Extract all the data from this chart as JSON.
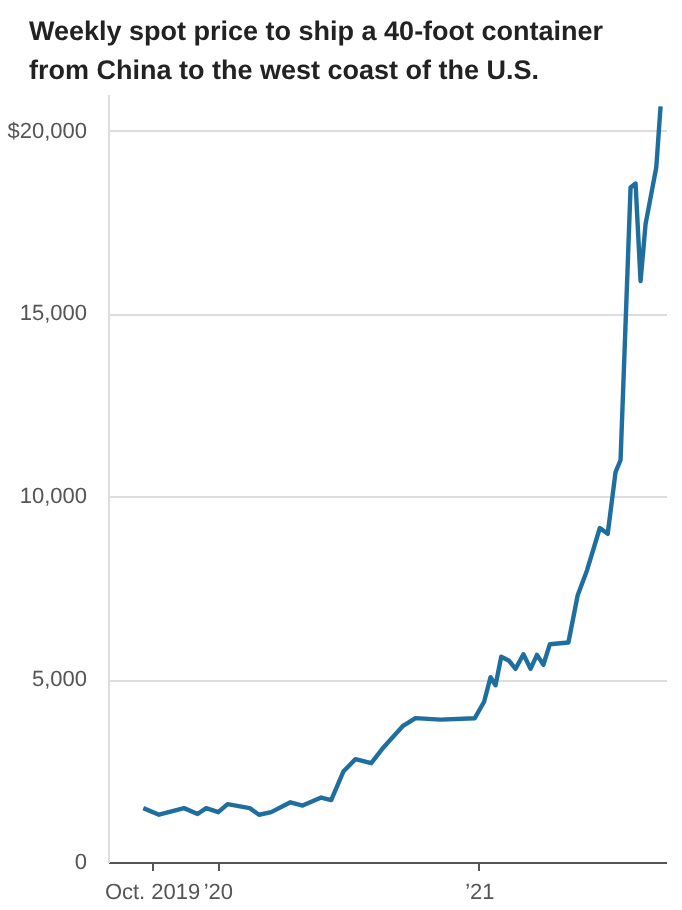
{
  "chart_data": {
    "type": "line",
    "title": "Weekly spot price to ship a 40-foot container from China to the west coast of the U.S.",
    "x": [
      "2019-09-18",
      "2019-10-10",
      "2019-11-14",
      "2019-12-03",
      "2019-12-15",
      "2020-01-01",
      "2020-01-14",
      "2020-02-14",
      "2020-02-27",
      "2020-03-15",
      "2020-04-11",
      "2020-04-28",
      "2020-05-24",
      "2020-06-07",
      "2020-06-24",
      "2020-07-11",
      "2020-08-02",
      "2020-08-20",
      "2020-09-15",
      "2020-10-03",
      "2020-11-07",
      "2020-12-25",
      "2021-01-07",
      "2021-01-16",
      "2021-01-23",
      "2021-01-31",
      "2021-02-11",
      "2021-02-20",
      "2021-03-03",
      "2021-03-13",
      "2021-03-22",
      "2021-03-31",
      "2021-04-09",
      "2021-05-05",
      "2021-05-18",
      "2021-05-31",
      "2021-06-18",
      "2021-06-29",
      "2021-07-10",
      "2021-07-17",
      "2021-07-31",
      "2021-08-07",
      "2021-08-14",
      "2021-08-21",
      "2021-09-05",
      "2021-09-11"
    ],
    "series": [
      {
        "color": "#1f6f9e",
        "values": [
          1500,
          1320,
          1500,
          1340,
          1500,
          1390,
          1610,
          1500,
          1320,
          1390,
          1660,
          1570,
          1790,
          1720,
          2500,
          2840,
          2730,
          3180,
          3740,
          3960,
          3920,
          3960,
          4410,
          5080,
          4860,
          5640,
          5530,
          5310,
          5710,
          5310,
          5690,
          5420,
          5980,
          6030,
          7320,
          8000,
          9160,
          9000,
          10690,
          11020,
          18470,
          18580,
          15910,
          17470,
          19020,
          20690
        ]
      }
    ],
    "xlim": [
      "2019-08-01",
      "2021-09-20"
    ],
    "ylim": [
      0,
      21000
    ],
    "xticks": [
      {
        "value": "2019-10-01",
        "label": "Oct. 2019"
      },
      {
        "value": "2020-01-01",
        "label": "’20"
      },
      {
        "value": "2021-01-01",
        "label": "’21"
      }
    ],
    "yticks": [
      0,
      {
        "value": 5000,
        "label": "5,000"
      },
      {
        "value": 10000,
        "label": "10,000"
      },
      {
        "value": 15000,
        "label": "15,000"
      },
      {
        "value": 20000,
        "label": "$20,000"
      }
    ],
    "grid": "y",
    "marker": "none",
    "line_style": "solid"
  }
}
